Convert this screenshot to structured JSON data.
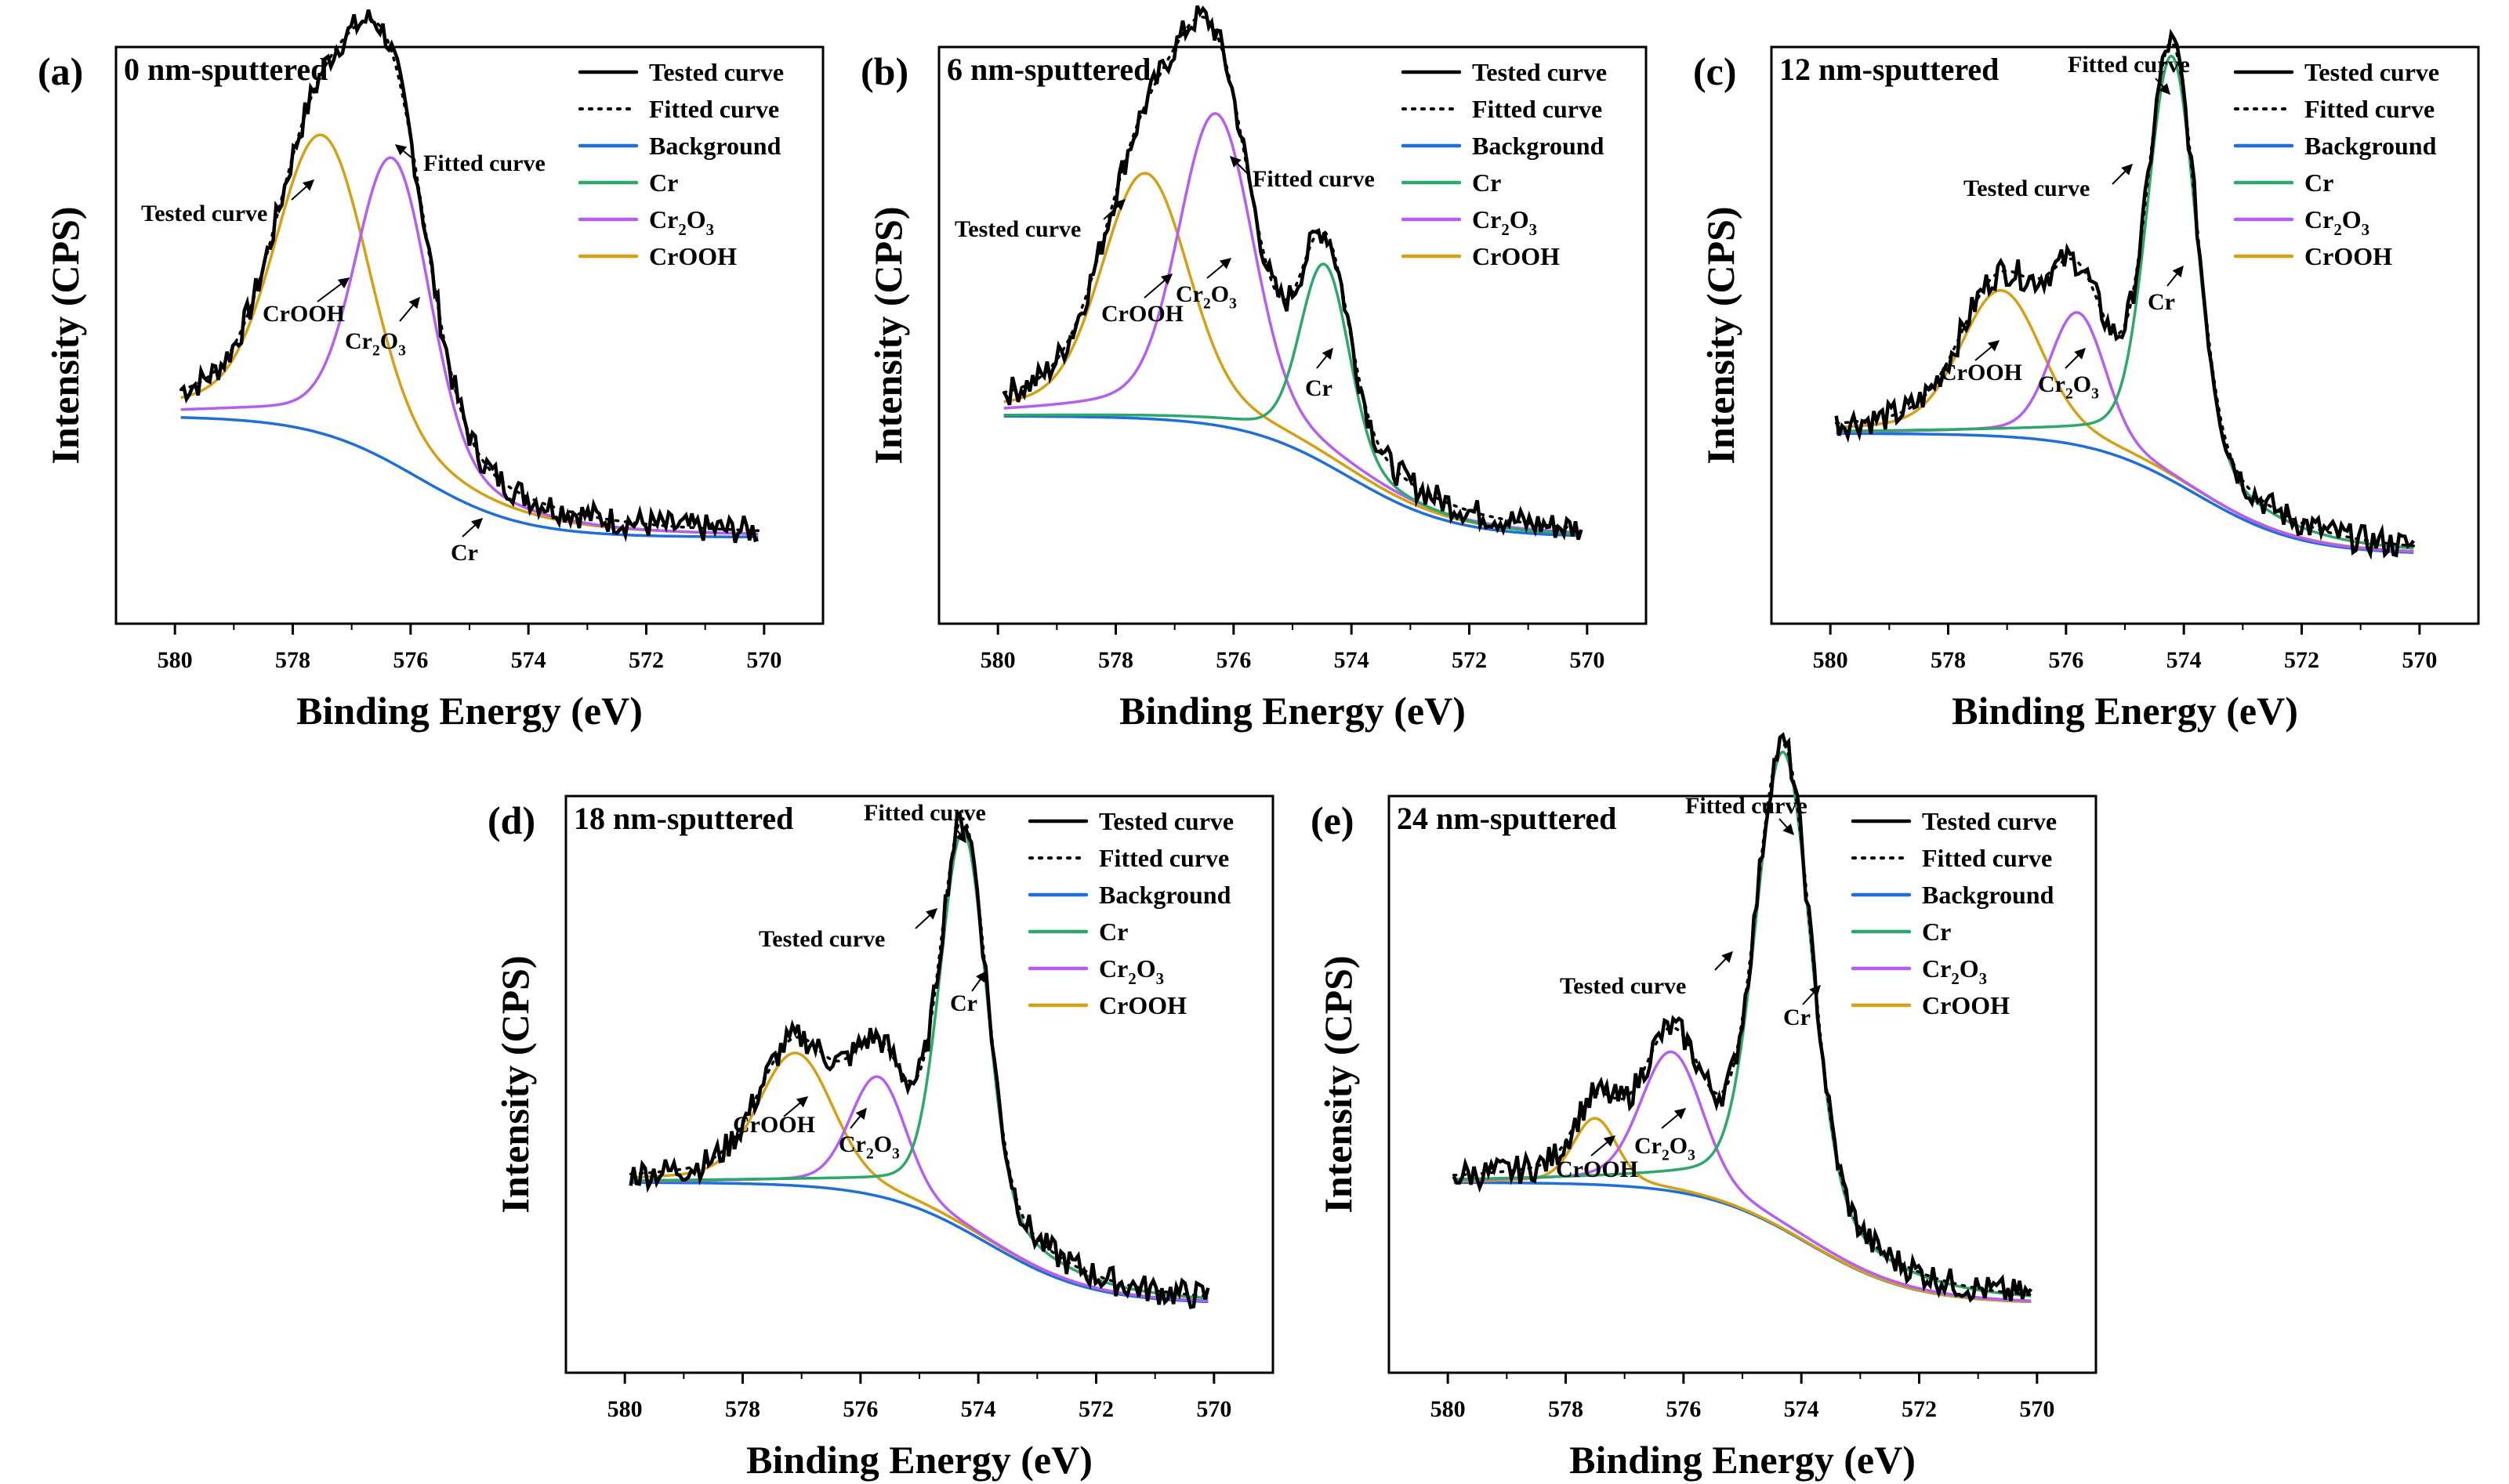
{
  "figure": {
    "xlabel": "Binding Energy (eV)",
    "ylabel": "Intensity (CPS)",
    "xticks": [
      "580",
      "578",
      "576",
      "574",
      "572",
      "570"
    ],
    "legend": [
      {
        "key": "tested",
        "label": "Tested curve",
        "color": "#000000",
        "style": "solid"
      },
      {
        "key": "fitted",
        "label": "Fitted curve",
        "color": "#000000",
        "style": "dotted"
      },
      {
        "key": "background",
        "label": "Background",
        "color": "#1f6fd6",
        "style": "solid"
      },
      {
        "key": "cr",
        "label": "Cr",
        "color": "#2ea86a",
        "style": "solid"
      },
      {
        "key": "cr2o3",
        "label": "Cr2O3",
        "label_main": "Cr",
        "label_sub1": "2",
        "label_mid": "O",
        "label_sub2": "3",
        "color": "#b45ff0",
        "style": "solid"
      },
      {
        "key": "crooh",
        "label": "CrOOH",
        "color": "#d3a016",
        "style": "solid"
      }
    ],
    "ann_text": {
      "tested": "Tested curve",
      "fitted": "Fitted curve",
      "cr": "Cr",
      "crooh": "CrOOH"
    }
  },
  "chart_data": [
    {
      "type": "line",
      "panel": "(a)",
      "title": "0 nm-sputtered",
      "xlabel": "Binding Energy (eV)",
      "ylabel": "Intensity (CPS)",
      "xlim": [
        581,
        569
      ],
      "ylim": [
        0,
        1
      ],
      "baseline": {
        "left": 0.36,
        "right": 0.15
      },
      "peaks": [
        {
          "name": "CrOOH",
          "center": 577.5,
          "height": 0.45,
          "width": 0.75
        },
        {
          "name": "Cr2O3",
          "center": 576.3,
          "height": 0.46,
          "width": 0.6
        }
      ],
      "annotations": [
        "Tested curve",
        "Fitted curve",
        "CrOOH",
        "Cr2O3",
        "Cr"
      ]
    },
    {
      "type": "line",
      "panel": "(b)",
      "title": "6 nm-sputtered",
      "xlabel": "Binding Energy (eV)",
      "ylabel": "Intensity (CPS)",
      "xlim": [
        581,
        569
      ],
      "ylim": [
        0,
        1
      ],
      "baseline": {
        "left": 0.36,
        "right": 0.15
      },
      "peaks": [
        {
          "name": "CrOOH",
          "center": 577.5,
          "height": 0.37,
          "width": 0.7
        },
        {
          "name": "Cr2O3",
          "center": 576.3,
          "height": 0.47,
          "width": 0.6
        },
        {
          "name": "Cr",
          "center": 574.45,
          "height": 0.3,
          "width": 0.4
        }
      ],
      "annotations": [
        "Tested curve",
        "Fitted curve",
        "CrOOH",
        "Cr2O3",
        "Cr"
      ]
    },
    {
      "type": "line",
      "panel": "(c)",
      "title": "12 nm-sputtered",
      "xlabel": "Binding Energy (eV)",
      "ylabel": "Intensity (CPS)",
      "xlim": [
        581,
        569
      ],
      "ylim": [
        0,
        1
      ],
      "baseline": {
        "left": 0.33,
        "right": 0.12
      },
      "peaks": [
        {
          "name": "CrOOH",
          "center": 577.1,
          "height": 0.22,
          "width": 0.65
        },
        {
          "name": "Cr2O3",
          "center": 575.8,
          "height": 0.2,
          "width": 0.45
        },
        {
          "name": "Cr",
          "center": 574.2,
          "height": 0.64,
          "width": 0.4
        }
      ],
      "annotations": [
        "Tested curve",
        "Fitted curve",
        "CrOOH",
        "Cr2O3",
        "Cr"
      ]
    },
    {
      "type": "line",
      "panel": "(d)",
      "title": "18 nm-sputtered",
      "xlabel": "Binding Energy (eV)",
      "ylabel": "Intensity (CPS)",
      "xlim": [
        581,
        569
      ],
      "ylim": [
        0,
        1
      ],
      "baseline": {
        "left": 0.33,
        "right": 0.12
      },
      "peaks": [
        {
          "name": "CrOOH",
          "center": 577.1,
          "height": 0.2,
          "width": 0.6
        },
        {
          "name": "Cr2O3",
          "center": 575.7,
          "height": 0.18,
          "width": 0.45
        },
        {
          "name": "Cr",
          "center": 574.25,
          "height": 0.6,
          "width": 0.38
        }
      ],
      "annotations": [
        "Tested curve",
        "Fitted curve",
        "CrOOH",
        "Cr2O3",
        "Cr"
      ]
    },
    {
      "type": "line",
      "panel": "(e)",
      "title": "24 nm-sputtered",
      "xlabel": "Binding Energy (eV)",
      "ylabel": "Intensity (CPS)",
      "xlim": [
        581,
        569
      ],
      "ylim": [
        0,
        1
      ],
      "baseline": {
        "left": 0.33,
        "right": 0.12
      },
      "peaks": [
        {
          "name": "CrOOH",
          "center": 577.5,
          "height": 0.1,
          "width": 0.35
        },
        {
          "name": "Cr2O3",
          "center": 576.2,
          "height": 0.21,
          "width": 0.5
        },
        {
          "name": "Cr",
          "center": 574.3,
          "height": 0.72,
          "width": 0.45
        }
      ],
      "annotations": [
        "Tested curve",
        "Fitted curve",
        "CrOOH",
        "Cr2O3",
        "Cr"
      ]
    }
  ]
}
